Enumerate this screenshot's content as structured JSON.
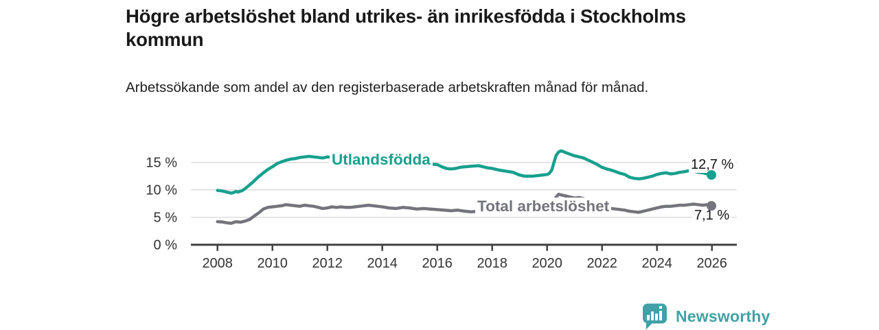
{
  "header": {
    "title": "Högre arbetslöshet bland utrikes- än inrikesfödda i Stockholms kommun",
    "subtitle": "Arbetssökande som andel av den registerbaserade arbetskraften månad för månad."
  },
  "footer": {
    "brand": "Newsworthy",
    "brand_color": "#41a1a6",
    "logo_icon": "bar-chart-pin-icon"
  },
  "chart_data": {
    "type": "line",
    "title": "Högre arbetslöshet bland utrikes- än inrikesfödda i Stockholms kommun",
    "subtitle": "Arbetssökande som andel av den registerbaserade arbetskraften månad för månad.",
    "grid": "horizontal",
    "legend": "inline-labels",
    "colors": {
      "gridline": "#dcdcdc",
      "axis": "#404040",
      "tick_text": "#333333"
    },
    "x_axis": {
      "ticks": [
        2008,
        2010,
        2012,
        2014,
        2016,
        2018,
        2020,
        2022,
        2024,
        2026
      ],
      "range": [
        2007.05,
        2026.9
      ]
    },
    "y_axis": {
      "ticks": [
        0,
        5,
        10,
        15
      ],
      "tick_labels": [
        "0 %",
        "5 %",
        "10 %",
        "15 %"
      ],
      "range": [
        0,
        18.5
      ]
    },
    "series": [
      {
        "name": "Utlandsfödda",
        "color": "#18a08e",
        "end_label": "12,7 %",
        "end_value": 12.7,
        "end_x": 2026.0,
        "points": [
          [
            2008.0,
            9.9
          ],
          [
            2008.17,
            9.8
          ],
          [
            2008.33,
            9.6
          ],
          [
            2008.5,
            9.4
          ],
          [
            2008.58,
            9.5
          ],
          [
            2008.67,
            9.7
          ],
          [
            2008.75,
            9.6
          ],
          [
            2008.92,
            9.9
          ],
          [
            2009.0,
            10.2
          ],
          [
            2009.17,
            10.9
          ],
          [
            2009.33,
            11.6
          ],
          [
            2009.5,
            12.4
          ],
          [
            2009.67,
            13.1
          ],
          [
            2009.83,
            13.7
          ],
          [
            2010.0,
            14.2
          ],
          [
            2010.17,
            14.8
          ],
          [
            2010.33,
            15.1
          ],
          [
            2010.5,
            15.4
          ],
          [
            2010.67,
            15.6
          ],
          [
            2010.83,
            15.7
          ],
          [
            2011.0,
            15.9
          ],
          [
            2011.17,
            16.0
          ],
          [
            2011.33,
            16.1
          ],
          [
            2011.5,
            16.0
          ],
          [
            2011.67,
            15.9
          ],
          [
            2011.83,
            15.8
          ],
          [
            2012.0,
            16.0
          ],
          [
            2012.17,
            15.9
          ],
          [
            2012.33,
            16.0
          ],
          [
            2012.5,
            16.1
          ],
          [
            2012.67,
            15.9
          ],
          [
            2012.83,
            15.8
          ],
          [
            2013.0,
            15.8
          ],
          [
            2013.17,
            15.9
          ],
          [
            2013.33,
            15.8
          ],
          [
            2013.5,
            15.7
          ],
          [
            2013.67,
            15.6
          ],
          [
            2013.83,
            15.5
          ],
          [
            2014.0,
            15.4
          ],
          [
            2014.25,
            15.3
          ],
          [
            2014.5,
            15.2
          ],
          [
            2014.75,
            15.1
          ],
          [
            2015.0,
            15.0
          ],
          [
            2015.25,
            14.9
          ],
          [
            2015.5,
            14.8
          ],
          [
            2015.75,
            14.7
          ],
          [
            2016.0,
            14.6
          ],
          [
            2016.17,
            14.2
          ],
          [
            2016.33,
            13.9
          ],
          [
            2016.5,
            13.8
          ],
          [
            2016.67,
            13.9
          ],
          [
            2016.83,
            14.1
          ],
          [
            2017.0,
            14.2
          ],
          [
            2017.25,
            14.3
          ],
          [
            2017.5,
            14.4
          ],
          [
            2017.67,
            14.2
          ],
          [
            2017.83,
            14.0
          ],
          [
            2018.0,
            13.9
          ],
          [
            2018.25,
            13.6
          ],
          [
            2018.5,
            13.4
          ],
          [
            2018.75,
            13.2
          ],
          [
            2019.0,
            12.7
          ],
          [
            2019.17,
            12.5
          ],
          [
            2019.33,
            12.5
          ],
          [
            2019.5,
            12.5
          ],
          [
            2019.67,
            12.6
          ],
          [
            2019.83,
            12.7
          ],
          [
            2020.0,
            12.8
          ],
          [
            2020.08,
            13.0
          ],
          [
            2020.17,
            13.6
          ],
          [
            2020.25,
            15.0
          ],
          [
            2020.33,
            16.3
          ],
          [
            2020.42,
            16.9
          ],
          [
            2020.5,
            17.1
          ],
          [
            2020.58,
            17.0
          ],
          [
            2020.67,
            16.8
          ],
          [
            2020.83,
            16.5
          ],
          [
            2021.0,
            16.2
          ],
          [
            2021.17,
            16.0
          ],
          [
            2021.33,
            15.8
          ],
          [
            2021.5,
            15.4
          ],
          [
            2021.67,
            15.0
          ],
          [
            2021.83,
            14.6
          ],
          [
            2022.0,
            14.1
          ],
          [
            2022.17,
            13.8
          ],
          [
            2022.33,
            13.6
          ],
          [
            2022.5,
            13.3
          ],
          [
            2022.67,
            13.0
          ],
          [
            2022.83,
            12.8
          ],
          [
            2023.0,
            12.3
          ],
          [
            2023.17,
            12.1
          ],
          [
            2023.33,
            12.0
          ],
          [
            2023.5,
            12.1
          ],
          [
            2023.67,
            12.3
          ],
          [
            2023.83,
            12.5
          ],
          [
            2024.0,
            12.8
          ],
          [
            2024.17,
            13.0
          ],
          [
            2024.33,
            13.1
          ],
          [
            2024.5,
            12.9
          ],
          [
            2024.67,
            13.0
          ],
          [
            2024.83,
            13.2
          ],
          [
            2025.0,
            13.3
          ],
          [
            2025.17,
            13.5
          ],
          [
            2025.33,
            13.4
          ],
          [
            2025.5,
            13.2
          ],
          [
            2025.67,
            13.1
          ],
          [
            2025.83,
            12.9
          ],
          [
            2026.0,
            12.7
          ]
        ]
      },
      {
        "name": "Total arbetslöshet",
        "color": "#74747c",
        "end_label": "7,1 %",
        "end_value": 7.1,
        "end_x": 2026.0,
        "points": [
          [
            2008.0,
            4.2
          ],
          [
            2008.17,
            4.15
          ],
          [
            2008.33,
            4.0
          ],
          [
            2008.5,
            3.9
          ],
          [
            2008.67,
            4.2
          ],
          [
            2008.83,
            4.1
          ],
          [
            2009.0,
            4.3
          ],
          [
            2009.17,
            4.6
          ],
          [
            2009.33,
            5.2
          ],
          [
            2009.5,
            5.8
          ],
          [
            2009.67,
            6.5
          ],
          [
            2009.83,
            6.8
          ],
          [
            2010.0,
            6.9
          ],
          [
            2010.17,
            7.0
          ],
          [
            2010.33,
            7.1
          ],
          [
            2010.5,
            7.3
          ],
          [
            2010.67,
            7.2
          ],
          [
            2010.83,
            7.1
          ],
          [
            2011.0,
            7.0
          ],
          [
            2011.17,
            7.2
          ],
          [
            2011.33,
            7.1
          ],
          [
            2011.5,
            7.0
          ],
          [
            2011.67,
            6.8
          ],
          [
            2011.83,
            6.6
          ],
          [
            2012.0,
            6.7
          ],
          [
            2012.17,
            6.9
          ],
          [
            2012.33,
            6.8
          ],
          [
            2012.5,
            6.9
          ],
          [
            2012.67,
            6.8
          ],
          [
            2012.83,
            6.8
          ],
          [
            2013.0,
            6.9
          ],
          [
            2013.17,
            7.0
          ],
          [
            2013.33,
            7.1
          ],
          [
            2013.5,
            7.2
          ],
          [
            2013.67,
            7.1
          ],
          [
            2013.83,
            7.0
          ],
          [
            2014.0,
            6.9
          ],
          [
            2014.25,
            6.7
          ],
          [
            2014.5,
            6.6
          ],
          [
            2014.75,
            6.8
          ],
          [
            2015.0,
            6.7
          ],
          [
            2015.25,
            6.5
          ],
          [
            2015.5,
            6.6
          ],
          [
            2015.75,
            6.5
          ],
          [
            2016.0,
            6.4
          ],
          [
            2016.25,
            6.3
          ],
          [
            2016.5,
            6.2
          ],
          [
            2016.75,
            6.3
          ],
          [
            2017.0,
            6.1
          ],
          [
            2017.25,
            6.0
          ],
          [
            2017.5,
            6.1
          ],
          [
            2017.75,
            6.0
          ],
          [
            2018.0,
            6.0
          ],
          [
            2018.25,
            5.9
          ],
          [
            2018.5,
            5.9
          ],
          [
            2018.75,
            5.8
          ],
          [
            2019.0,
            5.8
          ],
          [
            2019.25,
            5.8
          ],
          [
            2019.5,
            5.9
          ],
          [
            2019.75,
            6.0
          ],
          [
            2020.0,
            6.1
          ],
          [
            2020.17,
            6.8
          ],
          [
            2020.25,
            7.8
          ],
          [
            2020.33,
            8.7
          ],
          [
            2020.42,
            9.2
          ],
          [
            2020.5,
            9.1
          ],
          [
            2020.58,
            9.0
          ],
          [
            2020.75,
            8.8
          ],
          [
            2020.92,
            8.6
          ],
          [
            2021.0,
            8.5
          ],
          [
            2021.17,
            8.6
          ],
          [
            2021.33,
            8.4
          ],
          [
            2021.5,
            8.1
          ],
          [
            2021.67,
            7.7
          ],
          [
            2021.83,
            7.3
          ],
          [
            2022.0,
            7.0
          ],
          [
            2022.17,
            6.8
          ],
          [
            2022.33,
            6.6
          ],
          [
            2022.5,
            6.5
          ],
          [
            2022.67,
            6.4
          ],
          [
            2022.83,
            6.3
          ],
          [
            2023.0,
            6.1
          ],
          [
            2023.17,
            6.0
          ],
          [
            2023.33,
            5.9
          ],
          [
            2023.5,
            6.1
          ],
          [
            2023.67,
            6.3
          ],
          [
            2023.83,
            6.5
          ],
          [
            2024.0,
            6.7
          ],
          [
            2024.17,
            6.9
          ],
          [
            2024.33,
            7.0
          ],
          [
            2024.5,
            7.0
          ],
          [
            2024.67,
            7.1
          ],
          [
            2024.83,
            7.2
          ],
          [
            2025.0,
            7.2
          ],
          [
            2025.17,
            7.3
          ],
          [
            2025.33,
            7.4
          ],
          [
            2025.5,
            7.3
          ],
          [
            2025.67,
            7.2
          ],
          [
            2025.83,
            7.3
          ],
          [
            2026.0,
            7.1
          ]
        ]
      }
    ]
  }
}
